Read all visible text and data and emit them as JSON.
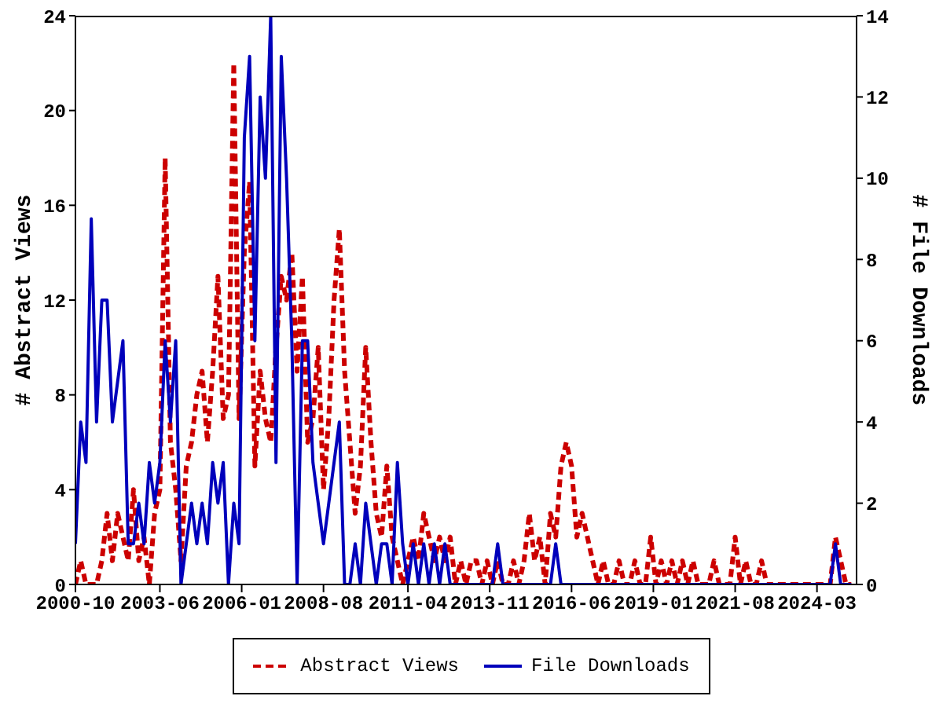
{
  "chart_data": {
    "type": "line",
    "xlabel": null,
    "ylabel": "# Abstract Views",
    "y2label": "# File Downloads",
    "x": [
      "2000-10",
      "2000-12",
      "2001-02",
      "2001-04",
      "2001-06",
      "2001-08",
      "2001-10",
      "2001-12",
      "2002-02",
      "2002-04",
      "2002-06",
      "2002-08",
      "2002-10",
      "2002-12",
      "2003-02",
      "2003-04",
      "2003-06",
      "2003-08",
      "2003-10",
      "2003-12",
      "2004-02",
      "2004-04",
      "2004-06",
      "2004-08",
      "2004-10",
      "2004-12",
      "2005-02",
      "2005-04",
      "2005-06",
      "2005-08",
      "2005-10",
      "2005-12",
      "2006-02",
      "2006-04",
      "2006-06",
      "2006-08",
      "2006-10",
      "2006-12",
      "2007-02",
      "2007-04",
      "2007-06",
      "2007-08",
      "2007-10",
      "2007-12",
      "2008-02",
      "2008-04",
      "2008-06",
      "2008-08",
      "2008-10",
      "2008-12",
      "2009-02",
      "2009-04",
      "2009-06",
      "2009-08",
      "2009-10",
      "2009-12",
      "2010-02",
      "2010-04",
      "2010-06",
      "2010-08",
      "2010-10",
      "2010-12",
      "2011-02",
      "2011-04",
      "2011-06",
      "2011-08",
      "2011-10",
      "2011-12",
      "2012-02",
      "2012-04",
      "2012-06",
      "2012-08",
      "2012-10",
      "2012-12",
      "2013-02",
      "2013-04",
      "2013-06",
      "2013-08",
      "2013-10",
      "2013-12",
      "2014-02",
      "2014-04",
      "2014-06",
      "2014-08",
      "2014-10",
      "2014-12",
      "2015-02",
      "2015-04",
      "2015-06",
      "2015-08",
      "2015-10",
      "2015-12",
      "2016-02",
      "2016-04",
      "2016-06",
      "2016-08",
      "2016-10",
      "2016-12",
      "2017-02",
      "2017-04",
      "2017-06",
      "2017-08",
      "2017-10",
      "2017-12",
      "2018-02",
      "2018-04",
      "2018-06",
      "2018-08",
      "2018-10",
      "2018-12",
      "2019-02",
      "2019-04",
      "2019-06",
      "2019-08",
      "2019-10",
      "2019-12",
      "2020-02",
      "2020-04",
      "2020-06",
      "2020-08",
      "2020-10",
      "2020-12",
      "2021-02",
      "2021-04",
      "2021-06",
      "2021-08",
      "2021-10",
      "2021-12",
      "2022-02",
      "2022-04",
      "2022-06",
      "2022-08",
      "2022-10",
      "2022-12",
      "2023-02",
      "2023-04",
      "2023-06",
      "2023-08",
      "2023-10",
      "2023-12",
      "2024-02",
      "2024-04",
      "2024-06",
      "2024-08",
      "2024-10",
      "2024-12",
      "2025-02",
      "2025-04"
    ],
    "series": [
      {
        "name": "Abstract Views",
        "color": "#cc0000",
        "line_style": "dashed",
        "values": [
          0,
          1,
          0,
          0,
          0,
          1,
          3,
          1,
          3,
          2,
          1,
          4,
          1,
          2,
          0,
          3,
          4,
          18,
          6,
          4,
          1,
          5,
          6,
          8,
          9,
          6,
          9,
          13,
          7,
          8,
          22,
          7,
          14,
          17,
          5,
          9,
          7,
          6,
          10,
          13,
          12,
          14,
          9,
          13,
          6,
          7,
          10,
          4,
          7,
          12,
          15,
          9,
          6,
          3,
          5,
          10,
          6,
          3,
          2,
          5,
          2,
          1,
          0,
          1,
          2,
          1,
          3,
          2,
          1,
          2,
          1,
          2,
          0,
          1,
          0,
          1,
          1,
          0,
          1,
          0,
          1,
          0,
          0,
          1,
          0,
          1,
          3,
          1,
          2,
          0,
          3,
          2,
          5,
          6,
          5,
          2,
          3,
          2,
          1,
          0,
          1,
          0,
          0,
          1,
          0,
          0,
          1,
          0,
          0,
          2,
          0,
          1,
          0,
          1,
          0,
          1,
          0,
          1,
          0,
          0,
          0,
          1,
          0,
          0,
          0,
          2,
          0,
          1,
          0,
          0,
          1,
          0,
          0,
          0,
          0,
          0,
          0,
          0,
          0,
          0,
          0,
          0,
          0,
          0,
          2,
          1,
          0,
          0
        ]
      },
      {
        "name": "File Downloads",
        "color": "#0000bb",
        "line_style": "solid",
        "axis": "y2",
        "values": [
          1,
          4,
          3,
          9,
          4,
          7,
          7,
          4,
          5,
          6,
          1,
          1,
          2,
          1,
          3,
          2,
          3,
          6,
          4,
          6,
          0,
          1,
          2,
          1,
          2,
          1,
          3,
          2,
          3,
          0,
          2,
          1,
          11,
          13,
          6,
          12,
          10,
          14,
          3,
          13,
          10,
          6,
          0,
          6,
          6,
          3,
          2,
          1,
          2,
          3,
          4,
          0,
          0,
          1,
          0,
          2,
          1,
          0,
          1,
          1,
          0,
          3,
          1,
          0,
          1,
          0,
          1,
          0,
          1,
          0,
          1,
          0,
          0,
          0,
          0,
          0,
          0,
          0,
          0,
          0,
          1,
          0,
          0,
          0,
          0,
          0,
          0,
          0,
          0,
          0,
          0,
          1,
          0,
          0,
          0,
          0,
          0,
          0,
          0,
          0,
          0,
          0,
          0,
          0,
          0,
          0,
          0,
          0,
          0,
          0,
          0,
          0,
          0,
          0,
          0,
          0,
          0,
          0,
          0,
          0,
          0,
          0,
          0,
          0,
          0,
          0,
          0,
          0,
          0,
          0,
          0,
          0,
          0,
          0,
          0,
          0,
          0,
          0,
          0,
          0,
          0,
          0,
          0,
          0,
          1,
          0,
          0,
          0
        ]
      }
    ],
    "xlim": [
      "2000-10",
      "2025-06"
    ],
    "xticks": [
      "2000-10",
      "2003-06",
      "2006-01",
      "2008-08",
      "2011-04",
      "2013-11",
      "2016-06",
      "2019-01",
      "2021-08",
      "2024-03"
    ],
    "ylim": [
      0,
      24
    ],
    "yticks": [
      0,
      4,
      8,
      12,
      16,
      20,
      24
    ],
    "y2lim": [
      0,
      14
    ],
    "y2ticks": [
      0,
      2,
      4,
      6,
      8,
      10,
      12,
      14
    ],
    "grid": false,
    "legend": "bottom",
    "marker": "none"
  }
}
